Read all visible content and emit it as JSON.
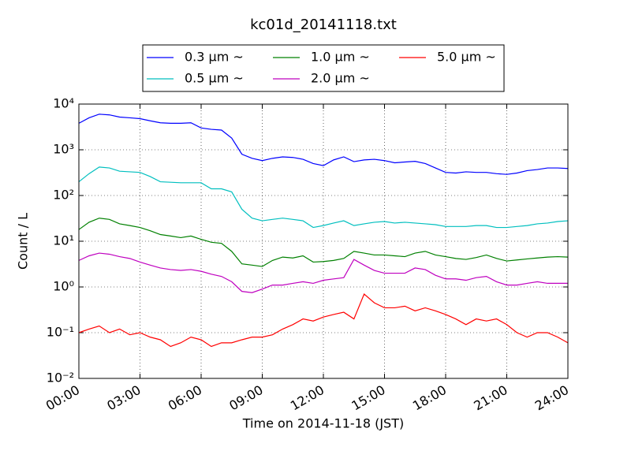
{
  "chart_data": {
    "type": "line",
    "title": "kc01d_20141118.txt",
    "xlabel": "Time on 2014-11-18 (JST)",
    "ylabel": "Count / L",
    "log_y": true,
    "grid": true,
    "legend": "top",
    "x": [
      0,
      0.5,
      1,
      1.5,
      2,
      2.5,
      3,
      3.5,
      4,
      4.5,
      5,
      5.5,
      6,
      6.5,
      7,
      7.5,
      8,
      8.5,
      9,
      9.5,
      10,
      10.5,
      11,
      11.5,
      12,
      12.5,
      13,
      13.5,
      14,
      14.5,
      15,
      15.5,
      16,
      16.5,
      17,
      17.5,
      18,
      18.5,
      19,
      19.5,
      20,
      20.5,
      21,
      21.5,
      22,
      22.5,
      23,
      23.5,
      24
    ],
    "xlim": [
      0,
      24
    ],
    "xticks": [
      {
        "value": 0,
        "label": "00:00"
      },
      {
        "value": 3,
        "label": "03:00"
      },
      {
        "value": 6,
        "label": "06:00"
      },
      {
        "value": 9,
        "label": "09:00"
      },
      {
        "value": 12,
        "label": "12:00"
      },
      {
        "value": 15,
        "label": "15:00"
      },
      {
        "value": 18,
        "label": "18:00"
      },
      {
        "value": 21,
        "label": "21:00"
      },
      {
        "value": 24,
        "label": "24:00"
      }
    ],
    "ylim": [
      0.01,
      10000
    ],
    "yticks": [
      {
        "value": 0.01,
        "label": "10⁻²"
      },
      {
        "value": 0.1,
        "label": "10⁻¹"
      },
      {
        "value": 1,
        "label": "10⁰"
      },
      {
        "value": 10,
        "label": "10¹"
      },
      {
        "value": 100,
        "label": "10²"
      },
      {
        "value": 1000,
        "label": "10³"
      },
      {
        "value": 10000,
        "label": "10⁴"
      }
    ],
    "series": [
      {
        "name": "0.3 μm ~",
        "color": "#0000ff",
        "values": [
          3800,
          5000,
          6000,
          5800,
          5200,
          5000,
          4800,
          4300,
          3900,
          3800,
          3800,
          3900,
          3000,
          2800,
          2700,
          1800,
          800,
          650,
          580,
          650,
          700,
          680,
          620,
          500,
          450,
          600,
          700,
          550,
          600,
          620,
          580,
          520,
          540,
          560,
          500,
          400,
          320,
          310,
          330,
          320,
          320,
          300,
          290,
          310,
          350,
          370,
          400,
          400,
          390
        ]
      },
      {
        "name": "0.5 μm ~",
        "color": "#00bfbf",
        "values": [
          200,
          300,
          420,
          400,
          340,
          330,
          320,
          260,
          200,
          195,
          190,
          190,
          190,
          140,
          140,
          120,
          50,
          32,
          28,
          30,
          32,
          30,
          28,
          20,
          22,
          25,
          28,
          22,
          24,
          26,
          27,
          25,
          26,
          25,
          24,
          23,
          21,
          21,
          21,
          22,
          22,
          20,
          20,
          21,
          22,
          24,
          25,
          27,
          28
        ]
      },
      {
        "name": "1.0 μm ~",
        "color": "#008000",
        "values": [
          18,
          26,
          32,
          30,
          24,
          22,
          20,
          17,
          14,
          13,
          12,
          13,
          11,
          9.5,
          9,
          6,
          3.2,
          3,
          2.8,
          3.8,
          4.5,
          4.3,
          4.8,
          3.5,
          3.6,
          3.8,
          4.2,
          6,
          5.5,
          5,
          5,
          4.8,
          4.6,
          5.5,
          6,
          5,
          4.6,
          4.2,
          4,
          4.4,
          5,
          4.2,
          3.7,
          3.9,
          4.1,
          4.3,
          4.5,
          4.6,
          4.5
        ]
      },
      {
        "name": "2.0 μm ~",
        "color": "#bf00bf",
        "values": [
          3.8,
          4.8,
          5.5,
          5.2,
          4.6,
          4.2,
          3.5,
          3,
          2.6,
          2.4,
          2.3,
          2.4,
          2.2,
          1.9,
          1.7,
          1.3,
          0.8,
          0.75,
          0.9,
          1.1,
          1.1,
          1.2,
          1.3,
          1.2,
          1.4,
          1.5,
          1.6,
          4,
          3,
          2.3,
          2,
          2,
          2,
          2.6,
          2.4,
          1.8,
          1.5,
          1.5,
          1.4,
          1.6,
          1.7,
          1.3,
          1.1,
          1.1,
          1.2,
          1.3,
          1.2,
          1.2,
          1.2
        ]
      },
      {
        "name": "5.0 μm ~",
        "color": "#ff0000",
        "values": [
          0.1,
          0.12,
          0.14,
          0.1,
          0.12,
          0.09,
          0.1,
          0.08,
          0.07,
          0.05,
          0.06,
          0.08,
          0.07,
          0.05,
          0.06,
          0.06,
          0.07,
          0.08,
          0.08,
          0.09,
          0.12,
          0.15,
          0.2,
          0.18,
          0.22,
          0.25,
          0.28,
          0.2,
          0.7,
          0.45,
          0.35,
          0.35,
          0.38,
          0.3,
          0.35,
          0.3,
          0.25,
          0.2,
          0.15,
          0.2,
          0.18,
          0.2,
          0.15,
          0.1,
          0.08,
          0.1,
          0.1,
          0.08,
          0.06
        ]
      }
    ]
  }
}
